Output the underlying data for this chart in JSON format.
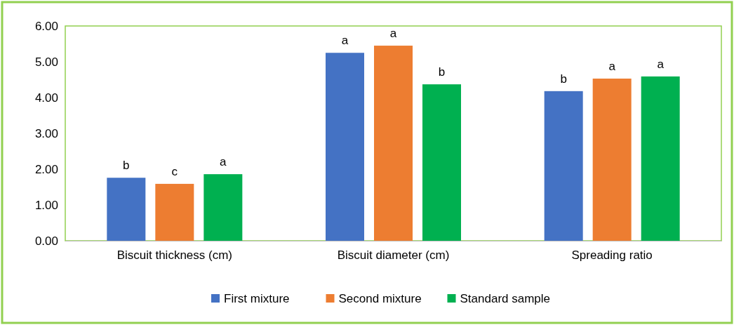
{
  "chart_data": {
    "type": "bar",
    "categories": [
      "Biscuit thickness (cm)",
      "Biscuit diameter (cm)",
      "Spreading ratio"
    ],
    "series": [
      {
        "name": "First mixture",
        "color": "#4472c4",
        "values": [
          1.76,
          5.25,
          4.18
        ]
      },
      {
        "name": "Second mixture",
        "color": "#ed7d31",
        "values": [
          1.59,
          5.45,
          4.53
        ]
      },
      {
        "name": "Standard sample",
        "color": "#00b050",
        "values": [
          1.86,
          4.37,
          4.59
        ]
      }
    ],
    "ylim": [
      0,
      6
    ],
    "yticks": [
      {
        "value": 0,
        "label": "0.00"
      },
      {
        "value": 1,
        "label": "1.00"
      },
      {
        "value": 2,
        "label": "2.00"
      },
      {
        "value": 3,
        "label": "3.00"
      },
      {
        "value": 4,
        "label": "4.00"
      },
      {
        "value": 5,
        "label": "5.00"
      },
      {
        "value": 6,
        "label": "6.00"
      }
    ],
    "grid": false,
    "legend": "bottom",
    "annotations": [
      "b",
      "c",
      "a",
      "a",
      "a",
      "b",
      "b",
      "a",
      "a"
    ]
  }
}
